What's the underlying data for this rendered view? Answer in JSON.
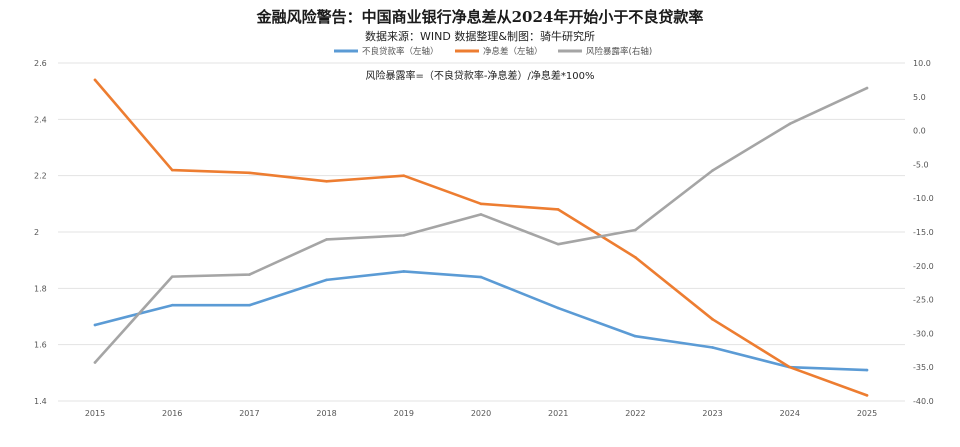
{
  "header": {
    "title": "金融风险警告：中国商业银行净息差从2024年开始小于不良贷款率",
    "subtitle": "数据来源：WIND  数据整理&制图：骑牛研究所"
  },
  "chart_data": {
    "type": "line",
    "title": "金融风险警告：中国商业银行净息差从2024年开始小于不良贷款率",
    "subtitle": "数据来源：WIND  数据整理&制图：骑牛研究所",
    "annotation": "风险暴露率=（不良贷款率-净息差）/净息差*100%",
    "categories": [
      "2015",
      "2016",
      "2017",
      "2018",
      "2019",
      "2020",
      "2021",
      "2022",
      "2023",
      "2024",
      "2025"
    ],
    "series": [
      {
        "name": "不良贷款率（左轴）",
        "axis": "left",
        "color": "#5b9bd5",
        "values": [
          1.67,
          1.74,
          1.74,
          1.83,
          1.86,
          1.84,
          1.73,
          1.63,
          1.59,
          1.52,
          1.51
        ]
      },
      {
        "name": "净息差（左轴）",
        "axis": "left",
        "color": "#ed7d31",
        "values": [
          2.54,
          2.22,
          2.21,
          2.18,
          2.2,
          2.1,
          2.08,
          1.91,
          1.69,
          1.52,
          1.42
        ]
      },
      {
        "name": "风险暴露率(右轴)",
        "axis": "right",
        "color": "#a5a5a5",
        "values": [
          -34.3,
          -21.6,
          -21.3,
          -16.1,
          -15.5,
          -12.4,
          -16.8,
          -14.7,
          -5.9,
          1.0,
          6.3
        ]
      }
    ],
    "y_left": {
      "min": 1.4,
      "max": 2.6,
      "ticks": [
        "1.4",
        "1.6",
        "1.8",
        "2",
        "2.2",
        "2.4",
        "2.6"
      ]
    },
    "y_right": {
      "min": -40,
      "max": 10,
      "ticks": [
        "-40.0",
        "-35.0",
        "-30.0",
        "-25.0",
        "-20.0",
        "-15.0",
        "-10.0",
        "-5.0",
        "0.0",
        "5.0",
        "10.0"
      ]
    },
    "grid": true,
    "legend_position": "top-center"
  }
}
